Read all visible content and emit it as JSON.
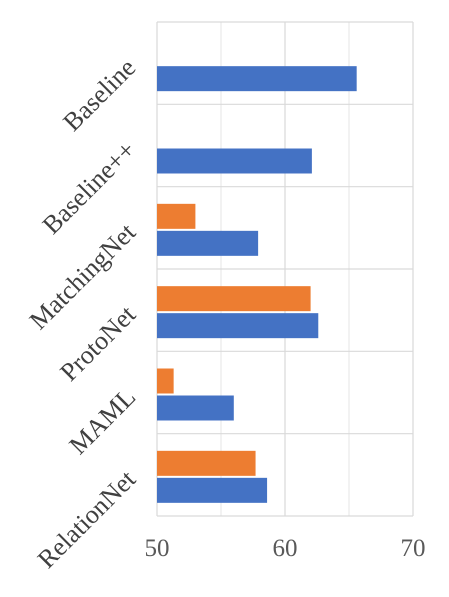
{
  "chart_data": {
    "type": "bar",
    "orientation": "horizontal",
    "categories": [
      "Baseline",
      "Baseline++",
      "MatchingNet",
      "ProtoNet",
      "MAML",
      "RelationNet"
    ],
    "series": [
      {
        "color": "#ED7D31",
        "values": [
          null,
          null,
          53.0,
          62.0,
          51.3,
          57.7
        ]
      },
      {
        "color": "#4472C4",
        "values": [
          65.6,
          62.1,
          57.9,
          62.6,
          56.0,
          58.6
        ]
      }
    ],
    "xlim": [
      50,
      70
    ],
    "xticks": [
      "50",
      "60",
      "70"
    ],
    "title": "",
    "xlabel": "",
    "ylabel": "",
    "grid": true,
    "legend": "none"
  }
}
